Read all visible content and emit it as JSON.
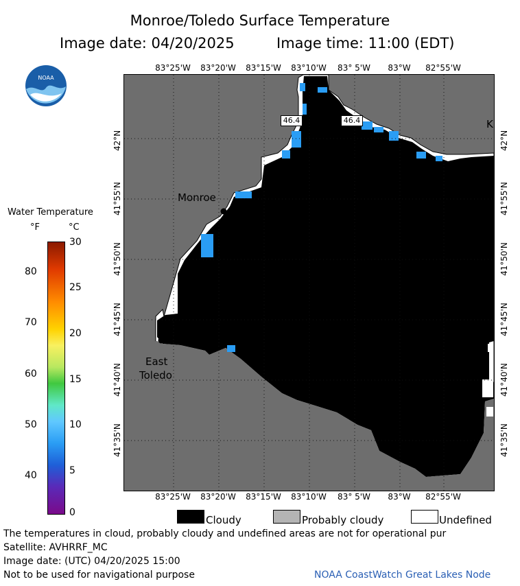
{
  "header": {
    "title": "Monroe/Toledo Surface Temperature",
    "image_date": "Image date: 04/20/2025",
    "image_time": "Image time: 11:00 (EDT)"
  },
  "logo": {
    "text": "NOAA"
  },
  "colorbar": {
    "title": "Water Temperature",
    "unit_f": "°F",
    "unit_c": "°C",
    "f_ticks": [
      "80",
      "70",
      "60",
      "50",
      "40"
    ],
    "c_ticks": [
      "30",
      "25",
      "20",
      "15",
      "10",
      "5",
      "0"
    ]
  },
  "map": {
    "lon_ticks": [
      "83°25'W",
      "83°20'W",
      "83°15'W",
      "83°10'W",
      "83° 5'W",
      "83°W",
      "82°55'W"
    ],
    "lat_ticks": [
      "42°N",
      "41°55'N",
      "41°50'N",
      "41°45'N",
      "41°40'N",
      "41°35'N"
    ],
    "places": {
      "monroe": "Monroe",
      "east_toledo_1": "East",
      "east_toledo_2": "Toledo",
      "edge_letter": "K"
    },
    "temp_labels": [
      "46.4",
      "46.4"
    ],
    "colors": {
      "land": "#6e6e6e",
      "cloud": "#000000",
      "undefined": "#ffffff",
      "water": "#2a9df4"
    }
  },
  "legend": {
    "cloudy": "Cloudy",
    "probably_cloudy": "Probably cloudy",
    "undefined": "Undefined"
  },
  "footer": {
    "line1": "The temperatures in cloud, probably cloudy and undefined areas are not for operational pur",
    "line2": "Satellite: AVHRRF_MC",
    "line3": "Image date: (UTC) 04/20/2025  15:00",
    "line4": "Not to be used for navigational purpose",
    "credit": "NOAA CoastWatch Great Lakes Node"
  }
}
